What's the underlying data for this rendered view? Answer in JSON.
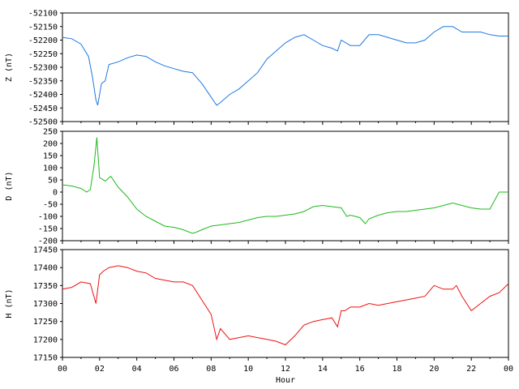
{
  "chart_data": [
    {
      "type": "line",
      "panel": "z",
      "ylabel": "Z (nT)",
      "ylim": [
        -52500,
        -52100
      ],
      "yticks": [
        -52100,
        -52150,
        -52200,
        -52250,
        -52300,
        -52350,
        -52400,
        -52450,
        -52500
      ],
      "xlim": [
        0,
        24
      ],
      "color": "#1f78e0",
      "x": [
        0,
        0.5,
        1.0,
        1.4,
        1.6,
        1.8,
        1.9,
        2.1,
        2.3,
        2.5,
        3.0,
        3.5,
        4.0,
        4.5,
        5.0,
        5.5,
        6.0,
        6.5,
        7.0,
        7.5,
        8.0,
        8.3,
        8.5,
        9.0,
        9.5,
        10.0,
        10.5,
        11.0,
        11.5,
        12.0,
        12.5,
        13.0,
        13.5,
        14.0,
        14.5,
        14.8,
        15.0,
        15.5,
        16.0,
        16.5,
        17.0,
        17.5,
        18.0,
        18.5,
        19.0,
        19.5,
        20.0,
        20.5,
        21.0,
        21.5,
        22.0,
        22.5,
        23.0,
        23.5,
        24.0
      ],
      "y": [
        -52190,
        -52195,
        -52215,
        -52260,
        -52330,
        -52420,
        -52440,
        -52360,
        -52350,
        -52290,
        -52280,
        -52265,
        -52255,
        -52260,
        -52280,
        -52295,
        -52305,
        -52315,
        -52320,
        -52360,
        -52410,
        -52440,
        -52430,
        -52400,
        -52380,
        -52350,
        -52320,
        -52270,
        -52240,
        -52210,
        -52190,
        -52180,
        -52200,
        -52220,
        -52230,
        -52240,
        -52200,
        -52220,
        -52220,
        -52180,
        -52180,
        -52190,
        -52200,
        -52210,
        -52210,
        -52200,
        -52170,
        -52150,
        -52150,
        -52170,
        -52170,
        -52170,
        -52180,
        -52185,
        -52185
      ]
    },
    {
      "type": "line",
      "panel": "d",
      "ylabel": "D (nT)",
      "ylim": [
        -200,
        250
      ],
      "yticks": [
        250,
        200,
        150,
        100,
        50,
        0,
        -50,
        -100,
        -150,
        -200
      ],
      "xlim": [
        0,
        24
      ],
      "color": "#1fb81f",
      "x": [
        0,
        0.5,
        1.0,
        1.3,
        1.5,
        1.7,
        1.85,
        2.0,
        2.3,
        2.6,
        3.0,
        3.5,
        4.0,
        4.5,
        5.0,
        5.5,
        6.0,
        6.5,
        7.0,
        7.2,
        7.5,
        8.0,
        8.5,
        9.0,
        9.5,
        10.0,
        10.5,
        11.0,
        11.5,
        12.0,
        12.5,
        13.0,
        13.5,
        14.0,
        14.5,
        15.0,
        15.3,
        15.5,
        16.0,
        16.3,
        16.5,
        17.0,
        17.5,
        18.0,
        18.5,
        19.0,
        19.5,
        20.0,
        20.5,
        21.0,
        21.5,
        22.0,
        22.5,
        23.0,
        23.5,
        24.0
      ],
      "y": [
        30,
        25,
        15,
        0,
        10,
        110,
        225,
        60,
        45,
        65,
        20,
        -20,
        -70,
        -100,
        -120,
        -140,
        -145,
        -155,
        -170,
        -165,
        -155,
        -140,
        -135,
        -130,
        -125,
        -115,
        -105,
        -100,
        -100,
        -95,
        -90,
        -80,
        -60,
        -55,
        -60,
        -65,
        -100,
        -95,
        -105,
        -130,
        -110,
        -95,
        -85,
        -80,
        -80,
        -75,
        -70,
        -65,
        -55,
        -45,
        -55,
        -65,
        -70,
        -70,
        0,
        0
      ]
    },
    {
      "type": "line",
      "panel": "h",
      "ylabel": "H (nT)",
      "ylim": [
        17150,
        17450
      ],
      "yticks": [
        17450,
        17400,
        17350,
        17300,
        17250,
        17200,
        17150
      ],
      "xlim": [
        0,
        24
      ],
      "xlabel": "Hour",
      "xticks": [
        "00",
        "02",
        "04",
        "06",
        "08",
        "10",
        "12",
        "14",
        "16",
        "18",
        "20",
        "22",
        "00"
      ],
      "color": "#ee1111",
      "x": [
        0,
        0.5,
        1.0,
        1.5,
        1.8,
        2.0,
        2.2,
        2.5,
        3.0,
        3.5,
        4.0,
        4.5,
        5.0,
        5.5,
        6.0,
        6.5,
        7.0,
        7.5,
        8.0,
        8.3,
        8.5,
        9.0,
        9.5,
        10.0,
        10.5,
        11.0,
        11.5,
        12.0,
        12.5,
        13.0,
        13.5,
        14.0,
        14.5,
        14.8,
        15.0,
        15.2,
        15.5,
        16.0,
        16.5,
        17.0,
        17.5,
        18.0,
        18.5,
        19.0,
        19.5,
        20.0,
        20.5,
        21.0,
        21.2,
        21.5,
        22.0,
        22.5,
        23.0,
        23.5,
        24.0
      ],
      "y": [
        17340,
        17345,
        17360,
        17355,
        17300,
        17380,
        17390,
        17400,
        17405,
        17400,
        17390,
        17385,
        17370,
        17365,
        17360,
        17360,
        17350,
        17310,
        17270,
        17200,
        17230,
        17200,
        17205,
        17210,
        17205,
        17200,
        17195,
        17185,
        17210,
        17240,
        17250,
        17255,
        17260,
        17235,
        17280,
        17280,
        17290,
        17290,
        17300,
        17295,
        17300,
        17305,
        17310,
        17315,
        17320,
        17350,
        17340,
        17340,
        17350,
        17320,
        17280,
        17300,
        17320,
        17330,
        17355
      ]
    }
  ]
}
